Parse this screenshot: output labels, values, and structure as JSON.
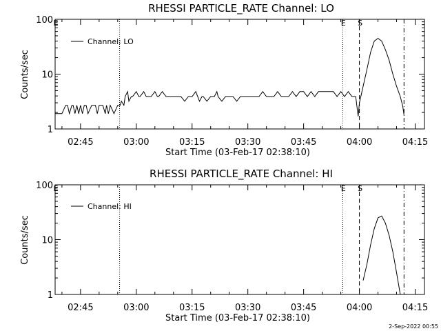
{
  "footer_date": "2-Sep-2022 00:55",
  "chart_data": [
    {
      "type": "line",
      "title": "RHESSI PARTICLE_RATE Channel: LO",
      "xlabel": "Start Time (03-Feb-17 02:38:10)",
      "ylabel": "Counts/sec",
      "legend": "Channel: LO",
      "legend_position": "top-left",
      "yscale": "log",
      "ylim": [
        1,
        100
      ],
      "xlim": [
        "02:38:10",
        "04:17:30"
      ],
      "yticks": [
        "1",
        "10",
        "100"
      ],
      "xticks": [
        "02:45",
        "03:00",
        "03:15",
        "03:30",
        "03:45",
        "04:00",
        "04:15"
      ],
      "markers": [
        {
          "time": "02:38:10",
          "label": "E",
          "style": "none"
        },
        {
          "time": "02:55:30",
          "label": "",
          "style": "dotted"
        },
        {
          "time": "03:55:30",
          "label": "E",
          "style": "dotted"
        },
        {
          "time": "04:00:00",
          "label": "S",
          "style": "dashed"
        },
        {
          "time": "04:12:00",
          "label": "",
          "style": "dashdot"
        }
      ],
      "x": [
        "02:38:10",
        "02:40",
        "02:41",
        "02:41:30",
        "02:42",
        "02:42:40",
        "02:43",
        "02:43:30",
        "02:44",
        "02:44:30",
        "02:45",
        "02:45:30",
        "02:46",
        "02:46:30",
        "02:47",
        "02:48",
        "02:48:30",
        "02:49",
        "02:49:30",
        "02:50",
        "02:51",
        "02:51:40",
        "02:52",
        "02:52:30",
        "02:53",
        "02:54",
        "02:55",
        "02:55:40",
        "02:56",
        "02:56:40",
        "02:57",
        "02:57:40",
        "02:58",
        "02:58:40",
        "02:59",
        "03:00",
        "03:00:40",
        "03:01",
        "03:02",
        "03:02:40",
        "03:03",
        "03:04",
        "03:05",
        "03:05:40",
        "03:06",
        "03:07",
        "03:08",
        "03:09",
        "03:10",
        "03:11",
        "03:11:40",
        "03:12",
        "03:13",
        "03:14",
        "03:15",
        "03:16",
        "03:17",
        "03:17:40",
        "03:18",
        "03:19",
        "03:20",
        "03:21",
        "03:21:40",
        "03:22",
        "03:23",
        "03:24",
        "03:25",
        "03:26",
        "03:27",
        "03:28",
        "03:29",
        "03:30",
        "03:31",
        "03:32",
        "03:33",
        "03:34",
        "03:35",
        "03:36",
        "03:37",
        "03:38",
        "03:39",
        "03:40",
        "03:41",
        "03:42",
        "03:43",
        "03:44",
        "03:45",
        "03:46",
        "03:47",
        "03:48",
        "03:49",
        "03:50",
        "03:51",
        "03:52",
        "03:53",
        "03:54",
        "03:55",
        "03:56",
        "03:57",
        "03:58",
        "03:59",
        "03:59:40",
        "04:00",
        "04:01",
        "04:02",
        "04:03",
        "04:04",
        "04:05",
        "04:06",
        "04:07",
        "04:08",
        "04:09",
        "04:10",
        "04:11",
        "04:11:40",
        "04:12"
      ],
      "y": [
        1.9,
        1.9,
        2.7,
        2.7,
        1.9,
        2.7,
        2.7,
        1.9,
        2.7,
        1.9,
        2.7,
        1.9,
        2.7,
        2.7,
        1.9,
        2.7,
        2.7,
        2.7,
        1.9,
        2.7,
        2.7,
        1.9,
        2.7,
        1.9,
        2.7,
        1.9,
        2.7,
        2.7,
        3.2,
        2.7,
        3.9,
        4.8,
        3.2,
        3.9,
        3.9,
        4.8,
        3.9,
        3.9,
        4.8,
        3.9,
        3.9,
        3.9,
        4.8,
        3.9,
        3.9,
        4.8,
        3.9,
        3.9,
        3.9,
        3.9,
        3.9,
        3.9,
        3.2,
        3.9,
        3.9,
        4.8,
        3.2,
        3.9,
        3.9,
        3.2,
        3.9,
        3.9,
        4.8,
        3.9,
        3.2,
        3.9,
        3.9,
        3.9,
        3.2,
        3.9,
        3.9,
        3.9,
        3.9,
        3.9,
        3.9,
        4.8,
        3.9,
        3.9,
        3.9,
        4.8,
        3.9,
        3.9,
        3.9,
        4.8,
        3.9,
        4.8,
        4.8,
        3.9,
        4.8,
        3.9,
        4.8,
        4.8,
        4.8,
        4.8,
        4.8,
        3.9,
        4.8,
        3.9,
        4.8,
        3.9,
        3.9,
        1.7,
        3.0,
        6.0,
        12.0,
        25.0,
        40.0,
        45.0,
        40.0,
        28.0,
        18.0,
        10.0,
        6.0,
        3.9,
        2.6,
        1.8
      ]
    },
    {
      "type": "line",
      "title": "RHESSI PARTICLE_RATE Channel: HI",
      "xlabel": "Start Time (03-Feb-17 02:38:10)",
      "ylabel": "Counts/sec",
      "legend": "Channel: HI",
      "legend_position": "top-left",
      "yscale": "log",
      "ylim": [
        1,
        100
      ],
      "xlim": [
        "02:38:10",
        "04:17:30"
      ],
      "yticks": [
        "1",
        "10",
        "100"
      ],
      "xticks": [
        "02:45",
        "03:00",
        "03:15",
        "03:30",
        "03:45",
        "04:00",
        "04:15"
      ],
      "markers": [
        {
          "time": "02:38:10",
          "label": "E",
          "style": "none"
        },
        {
          "time": "02:55:30",
          "label": "",
          "style": "dotted"
        },
        {
          "time": "03:55:30",
          "label": "E",
          "style": "dotted"
        },
        {
          "time": "04:00:00",
          "label": "S",
          "style": "dashed"
        },
        {
          "time": "04:12:00",
          "label": "",
          "style": "dashdot"
        }
      ],
      "x": [
        "04:01",
        "04:02",
        "04:03",
        "04:04",
        "04:05",
        "04:06",
        "04:07",
        "04:08",
        "04:09",
        "04:10",
        "04:11"
      ],
      "y": [
        1.8,
        3.5,
        8.0,
        16.0,
        25.0,
        27.0,
        20.0,
        12.0,
        6.0,
        2.5,
        1.0
      ]
    }
  ]
}
